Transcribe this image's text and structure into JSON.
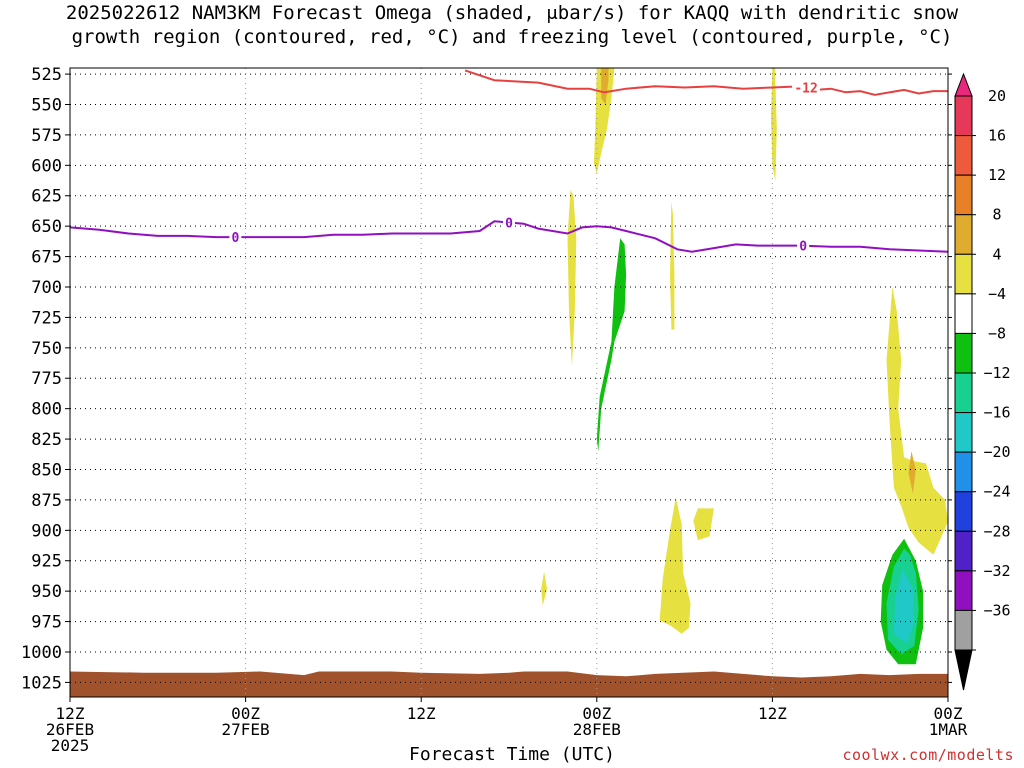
{
  "title": {
    "line1": "2025022612 NAM3KM Forecast Omega (shaded, μbar/s) for KAQQ with dendritic snow",
    "line2": "growth region (contoured, red, °C) and freezing level (contoured, purple, °C)"
  },
  "credit": "coolwx.com/modelts",
  "chart_data": {
    "type": "heatmap",
    "xlabel": "Forecast Time (UTC)",
    "ylabel": "",
    "x_range_hours": [
      0,
      60
    ],
    "y_range_hpa": [
      520,
      1037
    ],
    "y_scale": "linear-pressure",
    "y_ticks": [
      525,
      550,
      575,
      600,
      625,
      650,
      675,
      700,
      725,
      750,
      775,
      800,
      825,
      850,
      875,
      900,
      925,
      950,
      975,
      1000,
      1025
    ],
    "x_ticks": [
      {
        "hour": 0,
        "lines": [
          "12Z",
          "26FEB",
          "2025"
        ]
      },
      {
        "hour": 12,
        "lines": [
          "00Z",
          "27FEB"
        ]
      },
      {
        "hour": 24,
        "lines": [
          "12Z"
        ]
      },
      {
        "hour": 36,
        "lines": [
          "00Z",
          "28FEB"
        ]
      },
      {
        "hour": 48,
        "lines": [
          "12Z"
        ]
      },
      {
        "hour": 60,
        "lines": [
          "00Z",
          "1MAR"
        ]
      }
    ],
    "grid": true,
    "colorbar": {
      "placement": "right",
      "labels": [
        20,
        16,
        12,
        8,
        4,
        -4,
        -8,
        -12,
        -16,
        -20,
        -24,
        -28,
        -32,
        -36
      ],
      "bins": [
        {
          "color": "#e8385a"
        },
        {
          "color": "#f05a3c"
        },
        {
          "color": "#e88028"
        },
        {
          "color": "#e0ac30"
        },
        {
          "color": "#e6e040"
        },
        {
          "color": "#ffffff"
        },
        {
          "color": "#10c010"
        },
        {
          "color": "#18d090"
        },
        {
          "color": "#20c8c8"
        },
        {
          "color": "#2090e8"
        },
        {
          "color": "#2040e0"
        },
        {
          "color": "#5020c8"
        },
        {
          "color": "#9010c0"
        },
        {
          "color": "#a0a0a0"
        }
      ],
      "top_arrow_color": "#e8287a",
      "bottom_arrow_color": "#000000"
    },
    "series": [
      {
        "name": "-12",
        "color": "#e84040",
        "points": [
          [
            27.0,
            522
          ],
          [
            29.0,
            530
          ],
          [
            32.0,
            532
          ],
          [
            34.0,
            537
          ],
          [
            35.5,
            537
          ],
          [
            36.5,
            540
          ],
          [
            38.0,
            537
          ],
          [
            40.0,
            535
          ],
          [
            42.0,
            536
          ],
          [
            44.0,
            535
          ],
          [
            46.0,
            537
          ],
          [
            48.0,
            536
          ],
          [
            50.0,
            535
          ],
          [
            51.0,
            538
          ],
          [
            52.0,
            537
          ],
          [
            53.0,
            540
          ],
          [
            54.0,
            539
          ],
          [
            55.0,
            542
          ],
          [
            57.0,
            538
          ],
          [
            58.0,
            541
          ],
          [
            59.0,
            539
          ],
          [
            60.0,
            539
          ]
        ],
        "labels": [
          {
            "hour": 50.3,
            "text": "-12"
          }
        ]
      },
      {
        "name": "0",
        "color": "#9010c0",
        "points": [
          [
            0,
            651
          ],
          [
            2.0,
            653
          ],
          [
            4.0,
            656
          ],
          [
            6.0,
            658
          ],
          [
            8.0,
            658
          ],
          [
            10.0,
            659
          ],
          [
            12.0,
            659
          ],
          [
            14.0,
            659
          ],
          [
            16.0,
            659
          ],
          [
            18.0,
            657
          ],
          [
            20.0,
            657
          ],
          [
            22.0,
            656
          ],
          [
            24.0,
            656
          ],
          [
            26.0,
            656
          ],
          [
            28.0,
            654
          ],
          [
            29.0,
            646
          ],
          [
            30.0,
            647
          ],
          [
            31.0,
            648
          ],
          [
            32.0,
            652
          ],
          [
            34.0,
            656
          ],
          [
            35.0,
            651
          ],
          [
            36.0,
            650
          ],
          [
            37.0,
            651
          ],
          [
            38.0,
            654
          ],
          [
            40.0,
            660
          ],
          [
            41.5,
            669
          ],
          [
            42.5,
            671
          ],
          [
            44.0,
            668
          ],
          [
            45.5,
            665
          ],
          [
            47.0,
            666
          ],
          [
            48.0,
            666
          ],
          [
            50.0,
            666
          ],
          [
            52.0,
            667
          ],
          [
            54.0,
            667
          ],
          [
            56.0,
            669
          ],
          [
            58.0,
            670
          ],
          [
            60.0,
            671
          ]
        ],
        "labels": [
          {
            "hour": 11.3,
            "text": "0"
          },
          {
            "hour": 30.0,
            "text": "0"
          },
          {
            "hour": 50.1,
            "text": "0"
          }
        ]
      }
    ],
    "omega_regions": [
      {
        "value": 6,
        "polygon": [
          [
            36.0,
            520
          ],
          [
            35.9,
            570
          ],
          [
            35.8,
            598
          ],
          [
            36.0,
            607
          ],
          [
            36.3,
            590
          ],
          [
            36.7,
            570
          ],
          [
            37.0,
            545
          ],
          [
            37.2,
            520
          ]
        ]
      },
      {
        "value": 10,
        "polygon": [
          [
            36.3,
            520
          ],
          [
            36.3,
            545
          ],
          [
            36.6,
            550
          ],
          [
            36.8,
            530
          ],
          [
            36.8,
            520
          ]
        ]
      },
      {
        "value": 6,
        "polygon": [
          [
            48.0,
            520
          ],
          [
            47.9,
            560
          ],
          [
            48.0,
            600
          ],
          [
            48.2,
            613
          ],
          [
            48.3,
            570
          ],
          [
            48.2,
            530
          ],
          [
            48.2,
            520
          ]
        ]
      },
      {
        "value": 6,
        "polygon": [
          [
            34.2,
            620
          ],
          [
            34.0,
            660
          ],
          [
            34.1,
            720
          ],
          [
            34.3,
            765
          ],
          [
            34.5,
            720
          ],
          [
            34.6,
            660
          ],
          [
            34.4,
            625
          ]
        ]
      },
      {
        "value": 6,
        "polygon": [
          [
            41.1,
            630
          ],
          [
            41.0,
            690
          ],
          [
            41.1,
            735
          ],
          [
            41.3,
            735
          ],
          [
            41.3,
            690
          ],
          [
            41.2,
            640
          ]
        ]
      },
      {
        "value": -6,
        "polygon": [
          [
            37.6,
            660
          ],
          [
            37.2,
            700
          ],
          [
            37.0,
            745
          ],
          [
            36.2,
            790
          ],
          [
            36.0,
            825
          ],
          [
            36.1,
            835
          ],
          [
            36.3,
            800
          ],
          [
            37.0,
            760
          ],
          [
            37.2,
            745
          ],
          [
            37.9,
            720
          ],
          [
            38.0,
            690
          ],
          [
            37.9,
            665
          ]
        ]
      },
      {
        "value": 6,
        "polygon": [
          [
            56.2,
            700
          ],
          [
            55.8,
            760
          ],
          [
            56.0,
            810
          ],
          [
            56.3,
            865
          ],
          [
            56.8,
            880
          ],
          [
            57.3,
            898
          ],
          [
            58.0,
            910
          ],
          [
            59.0,
            920
          ],
          [
            60.0,
            893
          ],
          [
            59.8,
            875
          ],
          [
            59.0,
            865
          ],
          [
            58.5,
            845
          ],
          [
            57.6,
            843
          ],
          [
            57.0,
            840
          ],
          [
            56.6,
            800
          ],
          [
            56.8,
            760
          ],
          [
            56.5,
            720
          ]
        ]
      },
      {
        "value": 10,
        "polygon": [
          [
            57.5,
            835
          ],
          [
            57.3,
            853
          ],
          [
            57.6,
            870
          ],
          [
            57.8,
            850
          ]
        ]
      },
      {
        "value": 6,
        "polygon": [
          [
            41.4,
            873
          ],
          [
            41.0,
            900
          ],
          [
            40.5,
            940
          ],
          [
            40.3,
            974
          ],
          [
            41.0,
            978
          ],
          [
            41.8,
            985
          ],
          [
            42.3,
            980
          ],
          [
            42.4,
            960
          ],
          [
            41.9,
            935
          ],
          [
            41.8,
            895
          ]
        ]
      },
      {
        "value": 6,
        "polygon": [
          [
            42.9,
            882
          ],
          [
            42.6,
            892
          ],
          [
            42.9,
            908
          ],
          [
            43.7,
            905
          ],
          [
            44.0,
            882
          ]
        ]
      },
      {
        "value": 6,
        "polygon": [
          [
            32.4,
            934
          ],
          [
            32.2,
            948
          ],
          [
            32.3,
            962
          ],
          [
            32.6,
            948
          ]
        ]
      },
      {
        "value": -6,
        "polygon": [
          [
            57.0,
            907
          ],
          [
            56.2,
            920
          ],
          [
            55.5,
            945
          ],
          [
            55.4,
            975
          ],
          [
            55.8,
            998
          ],
          [
            56.6,
            1010
          ],
          [
            57.8,
            1010
          ],
          [
            58.3,
            980
          ],
          [
            58.3,
            950
          ],
          [
            57.8,
            925
          ]
        ]
      },
      {
        "value": -10,
        "polygon": [
          [
            57.0,
            915
          ],
          [
            56.3,
            930
          ],
          [
            55.8,
            960
          ],
          [
            55.9,
            990
          ],
          [
            56.8,
            1002
          ],
          [
            57.7,
            995
          ],
          [
            58.0,
            965
          ],
          [
            57.8,
            935
          ],
          [
            57.4,
            920
          ]
        ]
      },
      {
        "value": -14,
        "polygon": [
          [
            56.9,
            932
          ],
          [
            56.4,
            955
          ],
          [
            56.3,
            985
          ],
          [
            57.2,
            993
          ],
          [
            57.7,
            975
          ],
          [
            57.6,
            948
          ]
        ]
      }
    ],
    "terrain": {
      "color": "#a0522d",
      "top_hpa": [
        [
          0,
          1016
        ],
        [
          5,
          1017
        ],
        [
          10,
          1017
        ],
        [
          13,
          1016
        ],
        [
          16,
          1019
        ],
        [
          17,
          1016
        ],
        [
          20,
          1016
        ],
        [
          22,
          1016
        ],
        [
          24,
          1017
        ],
        [
          28,
          1018
        ],
        [
          30,
          1017
        ],
        [
          31,
          1016
        ],
        [
          34,
          1016
        ],
        [
          36,
          1019
        ],
        [
          38,
          1020
        ],
        [
          40,
          1018
        ],
        [
          44,
          1016
        ],
        [
          46,
          1018
        ],
        [
          48,
          1020
        ],
        [
          50,
          1021
        ],
        [
          52,
          1020
        ],
        [
          54,
          1018
        ],
        [
          56,
          1019
        ],
        [
          58,
          1018
        ],
        [
          60,
          1018
        ]
      ]
    }
  }
}
